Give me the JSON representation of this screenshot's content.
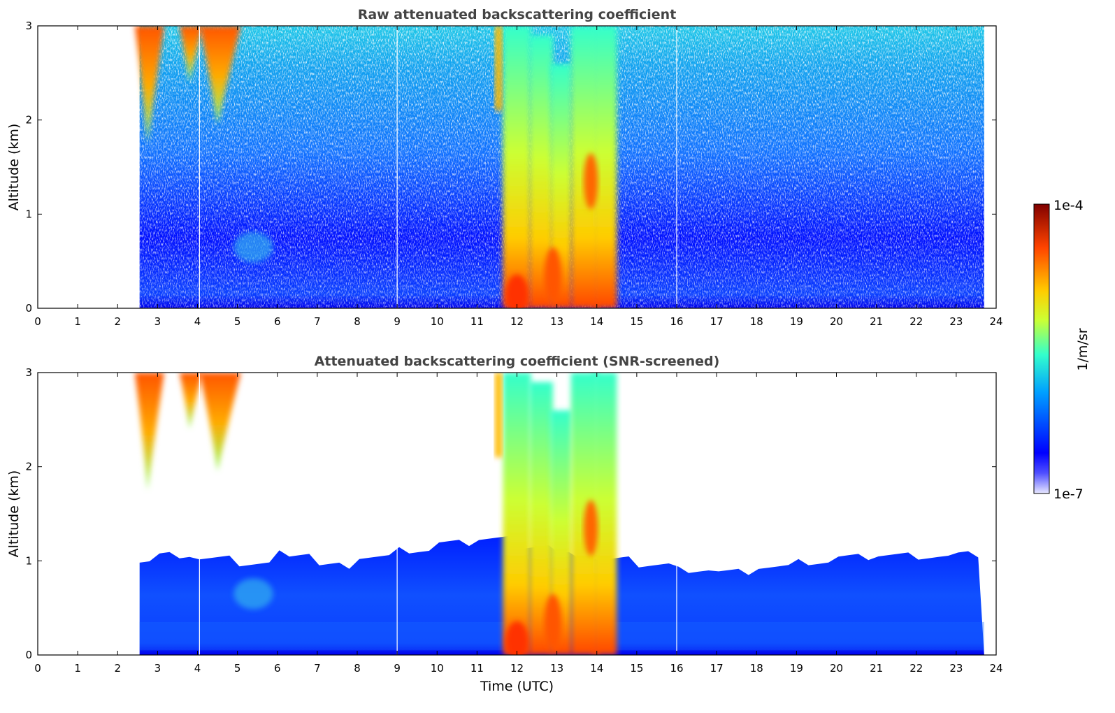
{
  "chart_data": [
    {
      "type": "heatmap",
      "title": "Raw attenuated backscattering coefficient",
      "xlabel": "",
      "ylabel": "Altitude (km)",
      "xlim": [
        0,
        24
      ],
      "ylim": [
        0,
        3
      ],
      "x_ticks": [
        "0",
        "1",
        "2",
        "3",
        "4",
        "5",
        "6",
        "7",
        "8",
        "9",
        "10",
        "11",
        "12",
        "13",
        "14",
        "15",
        "16",
        "17",
        "18",
        "19",
        "20",
        "21",
        "22",
        "23",
        "24"
      ],
      "y_ticks": [
        "0",
        "1",
        "2",
        "3"
      ],
      "data_time_range": [
        2.55,
        23.7
      ],
      "screened": false
    },
    {
      "type": "heatmap",
      "title": "Attenuated backscattering coefficient (SNR-screened)",
      "xlabel": "Time (UTC)",
      "ylabel": "Altitude (km)",
      "xlim": [
        0,
        24
      ],
      "ylim": [
        0,
        3
      ],
      "x_ticks": [
        "0",
        "1",
        "2",
        "3",
        "4",
        "5",
        "6",
        "7",
        "8",
        "9",
        "10",
        "11",
        "12",
        "13",
        "14",
        "15",
        "16",
        "17",
        "18",
        "19",
        "20",
        "21",
        "22",
        "23",
        "24"
      ],
      "y_ticks": [
        "0",
        "1",
        "2",
        "3"
      ],
      "data_time_range": [
        2.55,
        23.7
      ],
      "screened": true
    }
  ],
  "colorbar": {
    "label": "1/m/sr",
    "max_label": "1e-4",
    "min_label": "1e-7",
    "scale": "log",
    "range": [
      1e-07,
      0.0001
    ],
    "colormap": [
      "#e8e8ff",
      "#0000ff",
      "#00a0ff",
      "#33ffcc",
      "#ccff33",
      "#ffcc00",
      "#ff4400",
      "#800000"
    ]
  },
  "colors": {
    "title": "#444444",
    "gap_lines": "#ffffff"
  },
  "gap_times": [
    4.05,
    9.0,
    16.0
  ]
}
